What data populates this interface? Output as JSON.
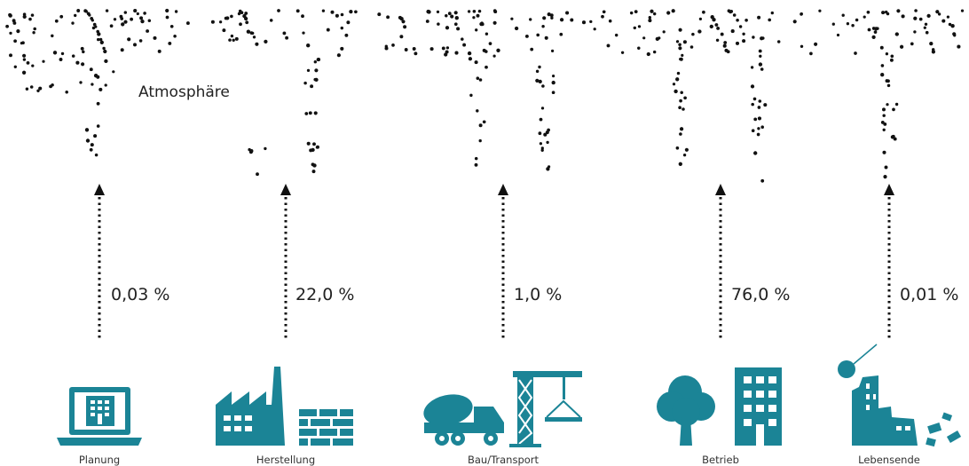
{
  "atmosphere_label": "Atmosphäre",
  "icon_color": "#1b8496",
  "dot_color": "#111111",
  "phases": [
    {
      "key": "planung",
      "name": "Planung",
      "percent_label": "0,03 %",
      "icon": "laptop-building-icon"
    },
    {
      "key": "herstellung",
      "name": "Herstellung",
      "percent_label": "22,0 %",
      "icon": "factory-bricks-icon"
    },
    {
      "key": "bau-transport",
      "name": "Bau/Transport",
      "percent_label": "1,0 %",
      "icon": "mixer-truck-crane-icon"
    },
    {
      "key": "betrieb",
      "name": "Betrieb",
      "percent_label": "76,0 %",
      "icon": "tree-building-icon"
    },
    {
      "key": "lebensende",
      "name": "Lebensende",
      "percent_label": "0,01 %",
      "icon": "wrecking-ball-icon"
    }
  ]
}
